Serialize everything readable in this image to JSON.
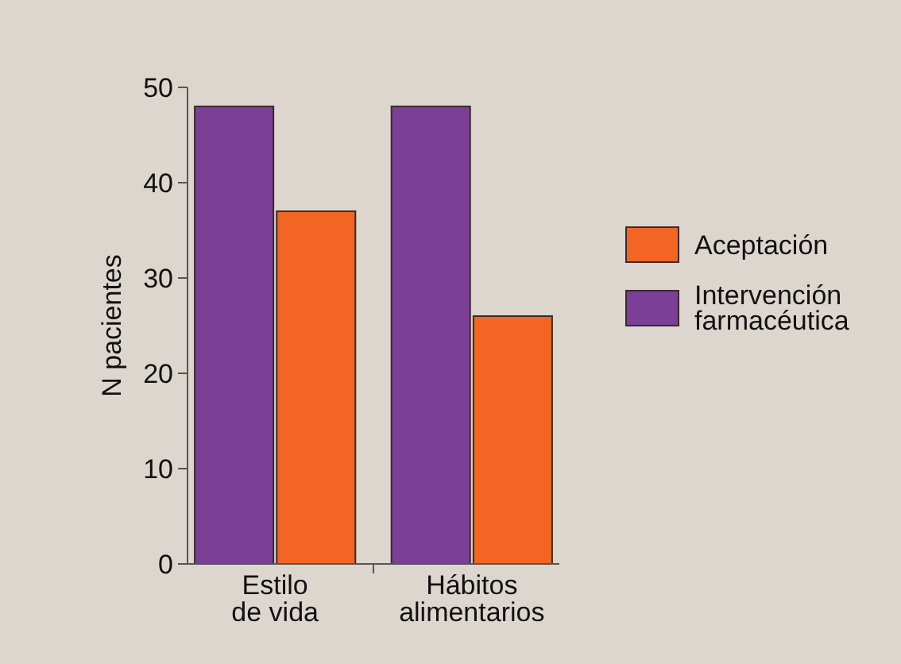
{
  "chart_data": {
    "type": "bar",
    "ylabel": "N pacientes",
    "categories": [
      "Estilo de vida",
      "Hábitos alimentarios"
    ],
    "series": [
      {
        "name": "Intervención farmacéutica",
        "color": "#7b3f98",
        "values": [
          48,
          48
        ]
      },
      {
        "name": "Aceptación",
        "color": "#f26522",
        "values": [
          37,
          26
        ]
      }
    ],
    "ylim": [
      0,
      50
    ],
    "yticks": [
      0,
      10,
      20,
      30,
      40,
      50
    ],
    "legend": "right",
    "grid": false
  }
}
